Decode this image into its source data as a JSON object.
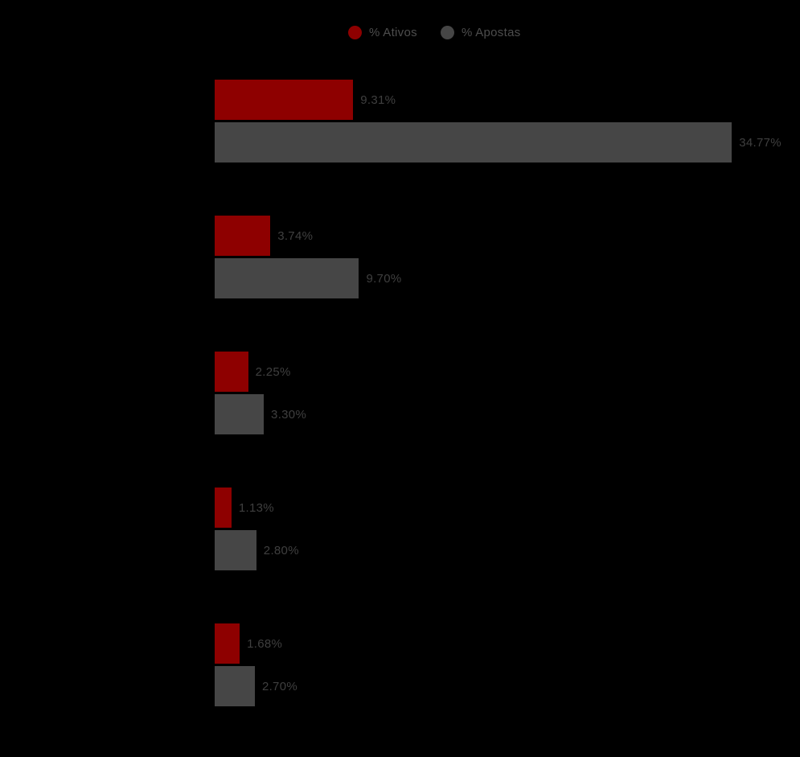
{
  "chart_data": {
    "type": "bar",
    "orientation": "horizontal",
    "legend_position": "top",
    "background_color": "#000000",
    "value_label_color": "#3f3f3f",
    "legend_text_color": "#4d4d4d",
    "grid": false,
    "series": [
      {
        "name": "% Ativos",
        "color": "#8e0000",
        "values": [
          9.31,
          3.74,
          2.25,
          1.13,
          1.68
        ],
        "labels": [
          "9.31%",
          "3.74%",
          "2.25%",
          "1.13%",
          "1.68%"
        ]
      },
      {
        "name": "% Apostas",
        "color": "#464646",
        "values": [
          34.77,
          9.7,
          3.3,
          2.8,
          2.7
        ],
        "labels": [
          "34.77%",
          "9.70%",
          "3.30%",
          "2.80%",
          "2.70%"
        ]
      }
    ]
  }
}
